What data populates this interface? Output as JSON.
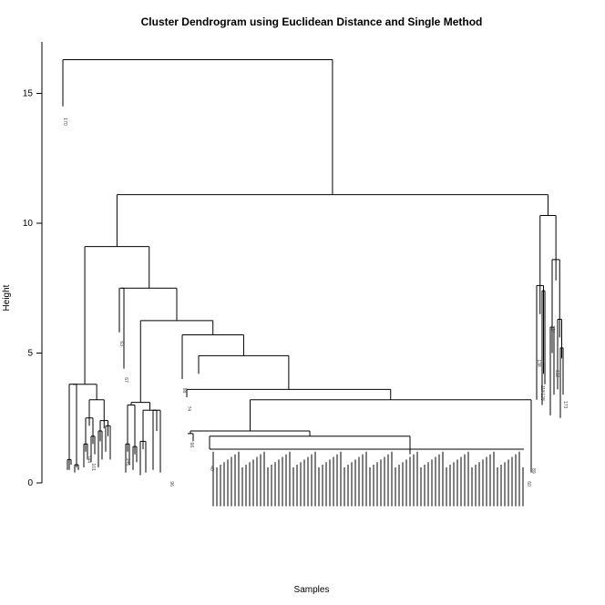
{
  "chart_data": {
    "type": "dendrogram",
    "title": "Cluster Dendrogram using Euclidean Distance and Single Method",
    "xlabel": "Samples",
    "ylabel": "Height",
    "ylim": [
      0,
      16.5
    ],
    "yticks": [
      0,
      5,
      10,
      15
    ],
    "grid": false,
    "merges": [
      {
        "height": 16.3,
        "children": [
          "170",
          "rest"
        ]
      },
      {
        "height": 11.1,
        "children": [
          "main-group",
          "right-group"
        ]
      },
      {
        "height": 10.3,
        "children": [
          "138-group",
          "124-group"
        ]
      },
      {
        "height": 9.1,
        "children": [
          "left-group",
          "middle-group"
        ]
      },
      {
        "height": 7.5,
        "children": [
          "63/67",
          "big-middle"
        ]
      },
      {
        "height": 6.25,
        "children": [
          "small-left",
          "large-cluster"
        ]
      },
      {
        "height": 5.7,
        "children": [
          "88",
          "big-cluster"
        ]
      },
      {
        "height": 4.9,
        "children": [
          "74",
          "big-cluster-core"
        ]
      },
      {
        "height": 3.8,
        "children": [
          "left-a",
          "left-b"
        ]
      },
      {
        "height": 3.6,
        "children": [
          "74-branch",
          "core"
        ]
      },
      {
        "height": 3.2,
        "children": [
          "main-leafs",
          "right-tail"
        ]
      }
    ],
    "leaf_labels_shown": [
      "170",
      "63",
      "67",
      "88",
      "74",
      "66",
      "138",
      "118",
      "128",
      "124",
      "132",
      "173",
      "144",
      "146",
      "101",
      "40",
      "60",
      "89",
      "96"
    ]
  }
}
